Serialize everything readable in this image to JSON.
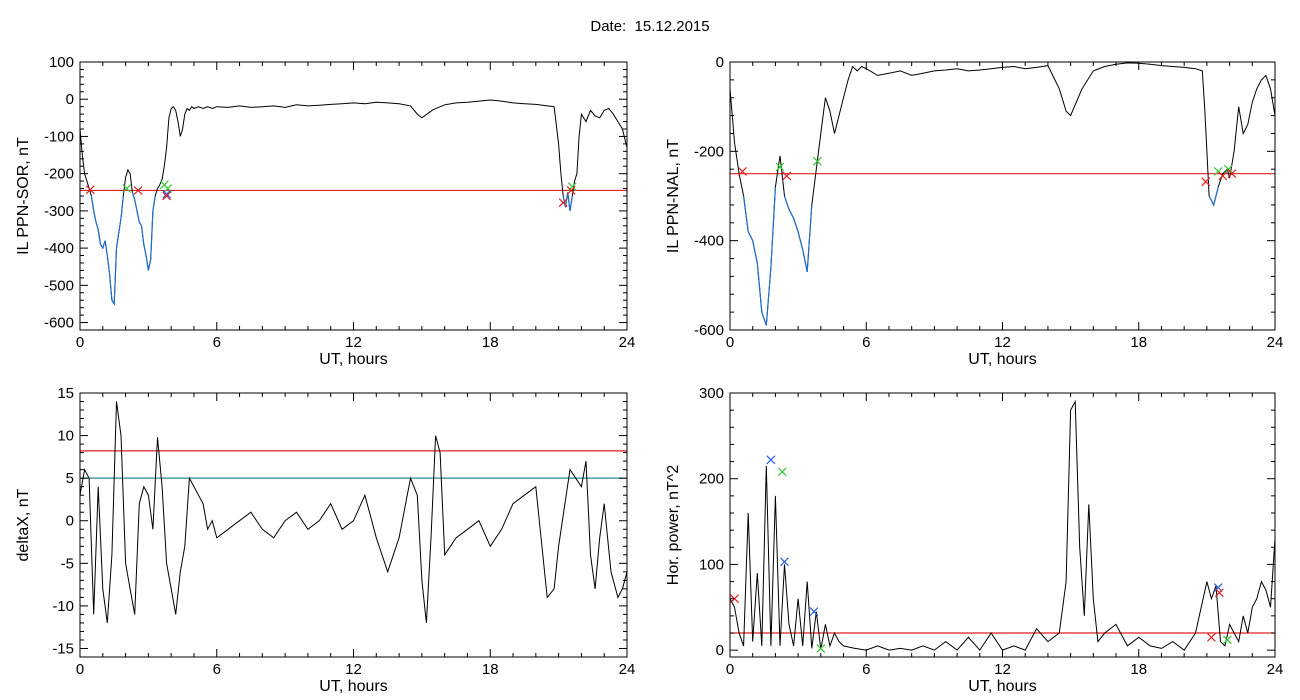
{
  "figure": {
    "title": "Date:  15.12.2015"
  },
  "colors": {
    "data_line": "#000000",
    "highlight_line": "#1f6fd1",
    "threshold_red": "#e02020",
    "threshold_blue": "#2a8a9a",
    "marker_red": "#e02020",
    "marker_green": "#34c934",
    "marker_blue": "#2a5ce0"
  },
  "chart_data": [
    {
      "type": "line",
      "panel": "top-left",
      "title": "",
      "xlabel": "UT, hours",
      "ylabel": "IL PPN-SOR, nT",
      "xlim": [
        0,
        24
      ],
      "ylim": [
        -620,
        100
      ],
      "xticks": [
        0,
        6,
        12,
        18,
        24
      ],
      "yticks": [
        100,
        0,
        -100,
        -200,
        -300,
        -400,
        -500,
        -600
      ],
      "threshold_lines": [
        {
          "y": -245,
          "color": "red"
        }
      ],
      "series": [
        {
          "x": [
            0,
            0.1,
            0.2,
            0.35,
            0.5,
            0.6,
            0.7,
            0.8,
            0.9,
            1.0,
            1.1,
            1.2,
            1.3,
            1.4,
            1.5,
            1.6,
            1.7,
            1.8,
            1.9,
            2.0,
            2.1,
            2.2,
            2.3,
            2.4,
            2.5,
            2.6,
            2.7,
            2.8,
            2.9,
            3.0,
            3.1,
            3.2,
            3.3,
            3.4,
            3.5,
            3.6,
            3.7,
            3.8,
            3.9,
            4.0,
            4.1,
            4.2,
            4.3,
            4.4,
            4.5,
            4.6,
            4.7,
            4.8,
            4.9,
            5.0,
            5.2,
            5.4,
            5.6,
            5.8,
            6.0,
            6.5,
            7,
            7.5,
            8,
            8.5,
            9,
            9.5,
            10,
            10.5,
            11,
            11.5,
            12,
            12.5,
            13,
            13.5,
            14,
            14.5,
            14.8,
            15,
            15.5,
            16,
            16.5,
            17,
            17.5,
            18,
            18.5,
            19,
            19.5,
            20,
            20.5,
            20.8,
            21,
            21.1,
            21.2,
            21.3,
            21.4,
            21.5,
            21.6,
            21.7,
            21.8,
            21.9,
            22,
            22.2,
            22.4,
            22.6,
            22.8,
            23,
            23.2,
            23.4,
            23.6,
            23.8,
            24
          ],
          "y": [
            -80,
            -150,
            -200,
            -230,
            -260,
            -300,
            -330,
            -350,
            -390,
            -400,
            -380,
            -420,
            -470,
            -540,
            -550,
            -400,
            -360,
            -320,
            -260,
            -210,
            -190,
            -200,
            -250,
            -270,
            -300,
            -330,
            -340,
            -390,
            -420,
            -460,
            -430,
            -300,
            -260,
            -240,
            -230,
            -215,
            -180,
            -130,
            -50,
            -25,
            -20,
            -30,
            -60,
            -100,
            -80,
            -40,
            -25,
            -30,
            -20,
            -25,
            -20,
            -25,
            -20,
            -25,
            -20,
            -22,
            -18,
            -22,
            -20,
            -18,
            -22,
            -15,
            -18,
            -16,
            -14,
            -12,
            -10,
            -12,
            -8,
            -10,
            -12,
            -18,
            -40,
            -50,
            -28,
            -15,
            -10,
            -8,
            -5,
            -2,
            -5,
            -10,
            -12,
            -14,
            -18,
            -20,
            -120,
            -200,
            -260,
            -290,
            -250,
            -300,
            -260,
            -220,
            -200,
            -100,
            -40,
            -60,
            -30,
            -45,
            -50,
            -30,
            -25,
            -40,
            -60,
            -80,
            -130
          ]
        }
      ],
      "markers": [
        {
          "x": 0.45,
          "y": -243,
          "color": "red"
        },
        {
          "x": 2.05,
          "y": -240,
          "color": "green"
        },
        {
          "x": 2.55,
          "y": -245,
          "color": "red"
        },
        {
          "x": 3.7,
          "y": -230,
          "color": "green"
        },
        {
          "x": 3.85,
          "y": -240,
          "color": "green"
        },
        {
          "x": 3.8,
          "y": -255,
          "color": "blue"
        },
        {
          "x": 3.8,
          "y": -260,
          "color": "red"
        },
        {
          "x": 21.2,
          "y": -278,
          "color": "red"
        },
        {
          "x": 21.6,
          "y": -235,
          "color": "green"
        },
        {
          "x": 21.55,
          "y": -245,
          "color": "red"
        }
      ]
    },
    {
      "type": "line",
      "panel": "top-right",
      "title": "",
      "xlabel": "UT, hours",
      "ylabel": "IL PPN-NAL, nT",
      "xlim": [
        0,
        24
      ],
      "ylim": [
        -600,
        0
      ],
      "xticks": [
        0,
        6,
        12,
        18,
        24
      ],
      "yticks": [
        0,
        -200,
        -400,
        -600
      ],
      "threshold_lines": [
        {
          "y": -250,
          "color": "red"
        }
      ],
      "series": [
        {
          "x": [
            0,
            0.1,
            0.2,
            0.4,
            0.6,
            0.8,
            1.0,
            1.2,
            1.4,
            1.6,
            1.8,
            2.0,
            2.2,
            2.4,
            2.6,
            2.8,
            3.0,
            3.2,
            3.4,
            3.6,
            3.8,
            4.0,
            4.2,
            4.4,
            4.6,
            4.8,
            5.0,
            5.2,
            5.4,
            5.6,
            5.8,
            6,
            6.5,
            7,
            7.5,
            8,
            8.5,
            9,
            9.5,
            10,
            10.5,
            11,
            11.5,
            12,
            12.5,
            13,
            13.5,
            14,
            14.5,
            14.8,
            15,
            15.5,
            16,
            16.5,
            17,
            17.5,
            18,
            18.5,
            19,
            19.5,
            20,
            20.5,
            20.8,
            20.9,
            21,
            21.1,
            21.3,
            21.5,
            21.7,
            21.9,
            22,
            22.2,
            22.4,
            22.6,
            22.8,
            23,
            23.2,
            23.4,
            23.6,
            23.8,
            24
          ],
          "y": [
            -60,
            -120,
            -180,
            -250,
            -300,
            -380,
            -400,
            -450,
            -560,
            -590,
            -460,
            -280,
            -210,
            -300,
            -330,
            -350,
            -380,
            -420,
            -470,
            -320,
            -240,
            -160,
            -80,
            -110,
            -160,
            -120,
            -80,
            -40,
            -10,
            -20,
            -10,
            -15,
            -30,
            -25,
            -20,
            -30,
            -25,
            -20,
            -18,
            -15,
            -20,
            -18,
            -15,
            -12,
            -10,
            -15,
            -12,
            -8,
            -60,
            -110,
            -120,
            -60,
            -20,
            -10,
            -5,
            -2,
            -3,
            -5,
            -8,
            -10,
            -12,
            -15,
            -20,
            -100,
            -200,
            -300,
            -320,
            -280,
            -250,
            -240,
            -260,
            -200,
            -100,
            -160,
            -140,
            -90,
            -60,
            -40,
            -30,
            -60,
            -120
          ]
        }
      ],
      "markers": [
        {
          "x": 0.55,
          "y": -245,
          "color": "red"
        },
        {
          "x": 2.2,
          "y": -235,
          "color": "green"
        },
        {
          "x": 2.5,
          "y": -255,
          "color": "red"
        },
        {
          "x": 3.85,
          "y": -222,
          "color": "green"
        },
        {
          "x": 20.95,
          "y": -268,
          "color": "red"
        },
        {
          "x": 21.5,
          "y": -245,
          "color": "green"
        },
        {
          "x": 21.7,
          "y": -255,
          "color": "red"
        },
        {
          "x": 21.95,
          "y": -240,
          "color": "green"
        },
        {
          "x": 22.1,
          "y": -250,
          "color": "red"
        }
      ]
    },
    {
      "type": "line",
      "panel": "bottom-left",
      "title": "",
      "xlabel": "UT, hours",
      "ylabel": "deltaX, nT",
      "xlim": [
        0,
        24
      ],
      "ylim": [
        -16,
        15
      ],
      "xticks": [
        0,
        6,
        12,
        18,
        24
      ],
      "yticks": [
        15,
        10,
        5,
        0,
        -5,
        -10,
        -15
      ],
      "threshold_lines": [
        {
          "y": 8.2,
          "color": "red"
        },
        {
          "y": 5,
          "color": "blue"
        }
      ],
      "series": [
        {
          "x": [
            0,
            0.2,
            0.4,
            0.6,
            0.8,
            1.0,
            1.2,
            1.4,
            1.6,
            1.8,
            2.0,
            2.2,
            2.4,
            2.6,
            2.8,
            3.0,
            3.2,
            3.4,
            3.6,
            3.8,
            4.0,
            4.2,
            4.4,
            4.6,
            4.8,
            5.0,
            5.2,
            5.4,
            5.6,
            5.8,
            6.0,
            6.5,
            7,
            7.5,
            8,
            8.5,
            9,
            9.5,
            10,
            10.5,
            11,
            11.5,
            12,
            12.5,
            13,
            13.5,
            14,
            14.5,
            14.8,
            15,
            15.2,
            15.4,
            15.6,
            15.8,
            16,
            16.5,
            17,
            17.5,
            18,
            18.5,
            19,
            19.5,
            20,
            20.5,
            20.8,
            21,
            21.5,
            22,
            22.2,
            22.4,
            22.6,
            22.8,
            23,
            23.3,
            23.6,
            23.8,
            24
          ],
          "y": [
            3,
            6,
            5,
            -11,
            4,
            -8,
            -12,
            -4,
            14,
            10,
            -5,
            -8,
            -11,
            2,
            4,
            3,
            -1,
            9.8,
            4,
            -5,
            -8,
            -11,
            -6,
            -3,
            5,
            4,
            3,
            2,
            -1,
            0,
            -2,
            -1,
            0,
            1,
            -1,
            -2,
            0,
            1,
            -1,
            0,
            2,
            -1,
            0,
            3,
            -2,
            -6,
            -2,
            5,
            3,
            -7,
            -12,
            -2,
            10,
            8,
            -4,
            -2,
            -1,
            0,
            -3,
            -1,
            2,
            3,
            4,
            -9,
            -8,
            -3,
            6,
            4,
            7,
            -4,
            -8,
            -2,
            2,
            -6,
            -9,
            -8,
            -6
          ]
        }
      ],
      "markers": []
    },
    {
      "type": "line",
      "panel": "bottom-right",
      "title": "",
      "xlabel": "UT, hours",
      "ylabel": "Hor. power, nT^2",
      "xlim": [
        0,
        24
      ],
      "ylim": [
        -8,
        300
      ],
      "xticks": [
        0,
        6,
        12,
        18,
        24
      ],
      "yticks": [
        300,
        200,
        100,
        0
      ],
      "threshold_lines": [
        {
          "y": 20,
          "color": "red"
        }
      ],
      "series": [
        {
          "x": [
            0,
            0.2,
            0.4,
            0.6,
            0.8,
            1.0,
            1.2,
            1.4,
            1.6,
            1.8,
            2.0,
            2.2,
            2.4,
            2.6,
            2.8,
            3.0,
            3.2,
            3.4,
            3.6,
            3.8,
            4.0,
            4.2,
            4.4,
            4.6,
            4.8,
            5.0,
            5.5,
            6,
            6.5,
            7,
            7.5,
            8,
            8.5,
            9,
            9.5,
            10,
            10.5,
            11,
            11.5,
            12,
            12.5,
            13,
            13.5,
            14,
            14.5,
            14.8,
            15,
            15.2,
            15.4,
            15.6,
            15.8,
            16,
            16.2,
            16.5,
            17,
            17.5,
            18,
            18.5,
            19,
            19.5,
            20,
            20.5,
            21,
            21.2,
            21.4,
            21.6,
            21.8,
            22,
            22.2,
            22.4,
            22.6,
            22.8,
            23,
            23.2,
            23.4,
            23.6,
            23.8,
            24
          ],
          "y": [
            60,
            50,
            20,
            5,
            160,
            10,
            90,
            5,
            215,
            5,
            180,
            5,
            100,
            30,
            5,
            60,
            5,
            80,
            2,
            45,
            1,
            30,
            5,
            20,
            10,
            5,
            2,
            0,
            5,
            0,
            2,
            0,
            5,
            0,
            10,
            0,
            15,
            0,
            20,
            0,
            5,
            0,
            25,
            10,
            20,
            80,
            280,
            290,
            120,
            40,
            170,
            60,
            10,
            20,
            30,
            5,
            15,
            5,
            2,
            10,
            0,
            20,
            80,
            60,
            75,
            10,
            5,
            30,
            20,
            10,
            40,
            20,
            50,
            60,
            80,
            70,
            50,
            130
          ]
        }
      ],
      "markers": [
        {
          "x": 0.2,
          "y": 60,
          "color": "red"
        },
        {
          "x": 1.8,
          "y": 222,
          "color": "blue"
        },
        {
          "x": 2.3,
          "y": 208,
          "color": "green"
        },
        {
          "x": 2.4,
          "y": 103,
          "color": "blue"
        },
        {
          "x": 3.7,
          "y": 45,
          "color": "blue"
        },
        {
          "x": 4.0,
          "y": 2,
          "color": "green"
        },
        {
          "x": 21.2,
          "y": 15,
          "color": "red"
        },
        {
          "x": 21.5,
          "y": 73,
          "color": "blue"
        },
        {
          "x": 21.55,
          "y": 67,
          "color": "red"
        },
        {
          "x": 21.9,
          "y": 12,
          "color": "green"
        }
      ]
    }
  ]
}
